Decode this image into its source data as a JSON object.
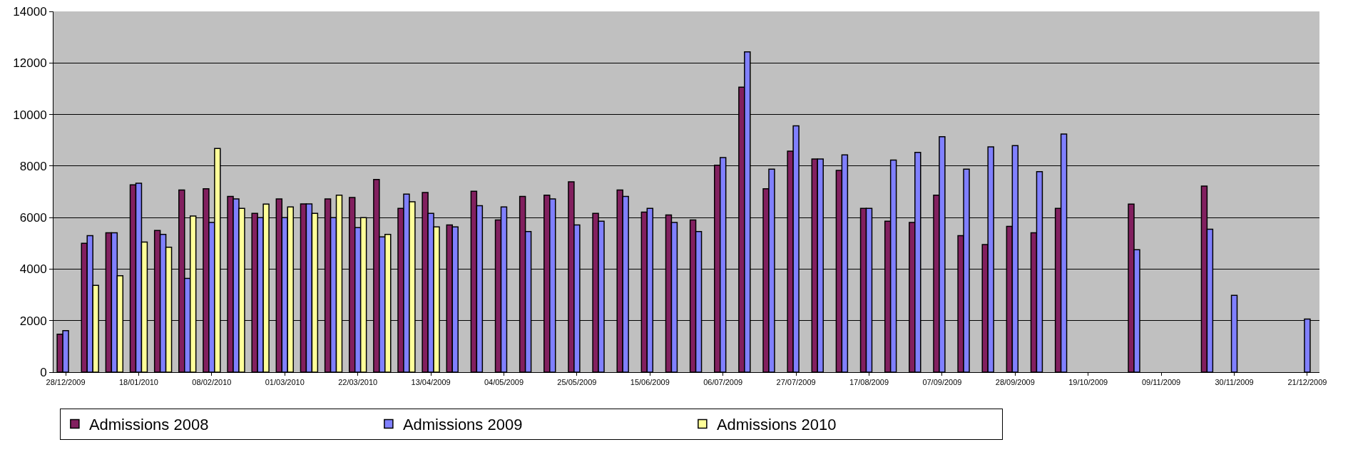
{
  "chart_data": {
    "type": "bar",
    "categories": [
      "28/12/2009",
      null,
      null,
      "18/01/2010",
      null,
      null,
      "08/02/2010",
      null,
      null,
      "01/03/2010",
      null,
      null,
      "22/03/2010",
      null,
      null,
      "13/04/2009",
      null,
      null,
      "04/05/2009",
      null,
      null,
      "25/05/2009",
      null,
      null,
      "15/06/2009",
      null,
      null,
      "06/07/2009",
      null,
      null,
      "27/07/2009",
      null,
      null,
      "17/08/2009",
      null,
      null,
      "07/09/2009",
      null,
      null,
      "28/09/2009",
      null,
      null,
      "19/10/2009",
      null,
      null,
      "09/11/2009",
      null,
      null,
      "30/11/2009",
      null,
      null,
      "21/12/2009"
    ],
    "series": [
      {
        "name": "Admissions 2008",
        "color": "#82205f",
        "values": [
          1470,
          5000,
          5410,
          7270,
          5500,
          7070,
          7120,
          6820,
          6160,
          6720,
          6530,
          6720,
          6780,
          7480,
          6360,
          6970,
          5710,
          7020,
          5910,
          6820,
          6870,
          7390,
          6160,
          7070,
          6210,
          6100,
          5910,
          8030,
          11060,
          7120,
          8580,
          8270,
          7830,
          6360,
          5860,
          5810,
          6870,
          5300,
          4950,
          5660,
          5410,
          6360,
          null,
          null,
          6520,
          null,
          null,
          7220,
          null,
          null,
          null,
          null
        ]
      },
      {
        "name": "Admissions 2009",
        "color": "#8080ff",
        "values": [
          1610,
          5300,
          5410,
          7330,
          5350,
          3640,
          5810,
          6720,
          6000,
          6000,
          6530,
          6000,
          5610,
          5250,
          6910,
          6160,
          5640,
          6460,
          6410,
          5460,
          6720,
          5710,
          5860,
          6820,
          6360,
          5810,
          5460,
          8330,
          12430,
          7880,
          9560,
          8270,
          8430,
          6360,
          8230,
          8530,
          9140,
          7880,
          8740,
          8790,
          7780,
          9240,
          null,
          null,
          4750,
          null,
          null,
          5550,
          2980,
          null,
          null,
          2060
        ]
      },
      {
        "name": "Admissions 2010",
        "color": "#ffff99",
        "values": [
          null,
          3370,
          3740,
          5050,
          4850,
          6060,
          8680,
          6360,
          6520,
          6410,
          6160,
          6870,
          6000,
          5350,
          6610,
          5640,
          null,
          null,
          null,
          null,
          null,
          null,
          null,
          null,
          null,
          null,
          null,
          null,
          null,
          null,
          null,
          null,
          null,
          null,
          null,
          null,
          null,
          null,
          null,
          null,
          null,
          null,
          null,
          null,
          null,
          null,
          null,
          null,
          null,
          null,
          null,
          null
        ]
      }
    ],
    "ylim": [
      0,
      14000
    ],
    "yticks": [
      0,
      2000,
      4000,
      6000,
      8000,
      10000,
      12000,
      14000
    ],
    "grid": "y",
    "legend": "bottom"
  }
}
